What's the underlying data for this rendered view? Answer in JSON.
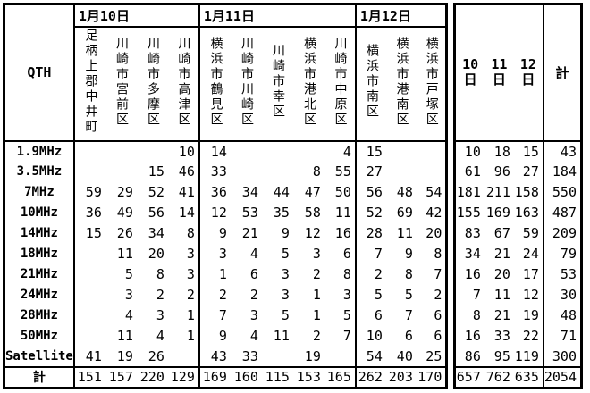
{
  "colors": {
    "border": "#000000",
    "background": "#ffffff",
    "text": "#000000"
  },
  "main_table": {
    "corner_label": "QTH",
    "total_row_label": "計",
    "date_groups": [
      {
        "label": "1月10日",
        "locations": [
          "足柄上郡中井町",
          "川崎市宮前区",
          "川崎市多摩区",
          "川崎市高津区"
        ]
      },
      {
        "label": "1月11日",
        "locations": [
          "横浜市鶴見区",
          "川崎市川崎区",
          "川崎市幸区",
          "横浜市港北区",
          "川崎市中原区"
        ]
      },
      {
        "label": "1月12日",
        "locations": [
          "横浜市南区",
          "横浜市港南区",
          "横浜市戸塚区"
        ]
      }
    ],
    "rows": [
      {
        "label": "1.9MHz",
        "values": [
          "",
          "",
          "",
          "10",
          "14",
          "",
          "",
          "",
          "4",
          "15",
          "",
          ""
        ]
      },
      {
        "label": "3.5MHz",
        "values": [
          "",
          "",
          "15",
          "46",
          "33",
          "",
          "",
          "8",
          "55",
          "27",
          "",
          ""
        ]
      },
      {
        "label": "7MHz",
        "values": [
          "59",
          "29",
          "52",
          "41",
          "36",
          "34",
          "44",
          "47",
          "50",
          "56",
          "48",
          "54"
        ]
      },
      {
        "label": "10MHz",
        "values": [
          "36",
          "49",
          "56",
          "14",
          "12",
          "53",
          "35",
          "58",
          "11",
          "52",
          "69",
          "42"
        ]
      },
      {
        "label": "14MHz",
        "values": [
          "15",
          "26",
          "34",
          "8",
          "9",
          "21",
          "9",
          "12",
          "16",
          "28",
          "11",
          "20"
        ]
      },
      {
        "label": "18MHz",
        "values": [
          "",
          "11",
          "20",
          "3",
          "3",
          "4",
          "5",
          "3",
          "6",
          "7",
          "9",
          "8"
        ]
      },
      {
        "label": "21MHz",
        "values": [
          "",
          "5",
          "8",
          "3",
          "1",
          "6",
          "3",
          "2",
          "8",
          "2",
          "8",
          "7"
        ]
      },
      {
        "label": "24MHz",
        "values": [
          "",
          "3",
          "2",
          "2",
          "2",
          "2",
          "3",
          "1",
          "3",
          "5",
          "5",
          "2"
        ]
      },
      {
        "label": "28MHz",
        "values": [
          "",
          "4",
          "3",
          "1",
          "7",
          "3",
          "5",
          "1",
          "5",
          "6",
          "7",
          "6"
        ]
      },
      {
        "label": "50MHz",
        "values": [
          "",
          "11",
          "4",
          "1",
          "9",
          "4",
          "11",
          "2",
          "7",
          "10",
          "6",
          "6"
        ]
      },
      {
        "label": "Satellite",
        "values": [
          "41",
          "19",
          "26",
          "",
          "43",
          "33",
          "",
          "19",
          "",
          "54",
          "40",
          "25"
        ]
      }
    ],
    "totals": [
      "151",
      "157",
      "220",
      "129",
      "169",
      "160",
      "115",
      "153",
      "165",
      "262",
      "203",
      "170"
    ]
  },
  "summary_table": {
    "day_headers": [
      {
        "num": "10",
        "unit": "日"
      },
      {
        "num": "11",
        "unit": "日"
      },
      {
        "num": "12",
        "unit": "日"
      }
    ],
    "total_header": "計",
    "rows": [
      [
        "10",
        "18",
        "15",
        "43"
      ],
      [
        "61",
        "96",
        "27",
        "184"
      ],
      [
        "181",
        "211",
        "158",
        "550"
      ],
      [
        "155",
        "169",
        "163",
        "487"
      ],
      [
        "83",
        "67",
        "59",
        "209"
      ],
      [
        "34",
        "21",
        "24",
        "79"
      ],
      [
        "16",
        "20",
        "17",
        "53"
      ],
      [
        "7",
        "11",
        "12",
        "30"
      ],
      [
        "8",
        "21",
        "19",
        "48"
      ],
      [
        "16",
        "33",
        "22",
        "71"
      ],
      [
        "86",
        "95",
        "119",
        "300"
      ]
    ],
    "totals": [
      "657",
      "762",
      "635",
      "2054"
    ]
  }
}
